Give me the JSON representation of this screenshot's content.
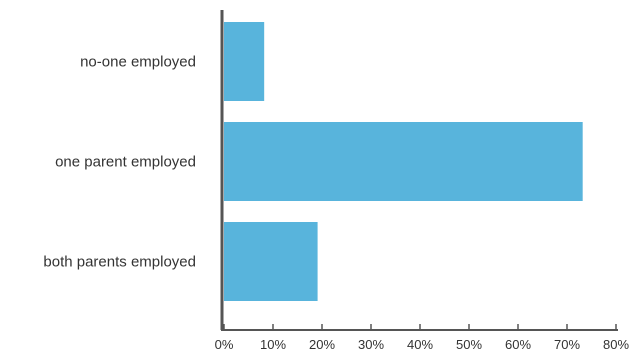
{
  "chart_data": {
    "type": "bar",
    "orientation": "horizontal",
    "title": "",
    "xlabel": "",
    "ylabel": "",
    "categories": [
      "no-one employed",
      "one parent employed",
      "both parents employed"
    ],
    "values": [
      0.082,
      0.732,
      0.191
    ],
    "xlim": [
      0,
      0.8
    ],
    "xticks": [
      "0%",
      "10%",
      "20%",
      "30%",
      "40%",
      "50%",
      "60%",
      "70%",
      "80%"
    ],
    "grid": false,
    "legend": "none",
    "colors": {
      "bar": "#58B4DC",
      "axis": "#555555",
      "text": "#333333"
    }
  }
}
